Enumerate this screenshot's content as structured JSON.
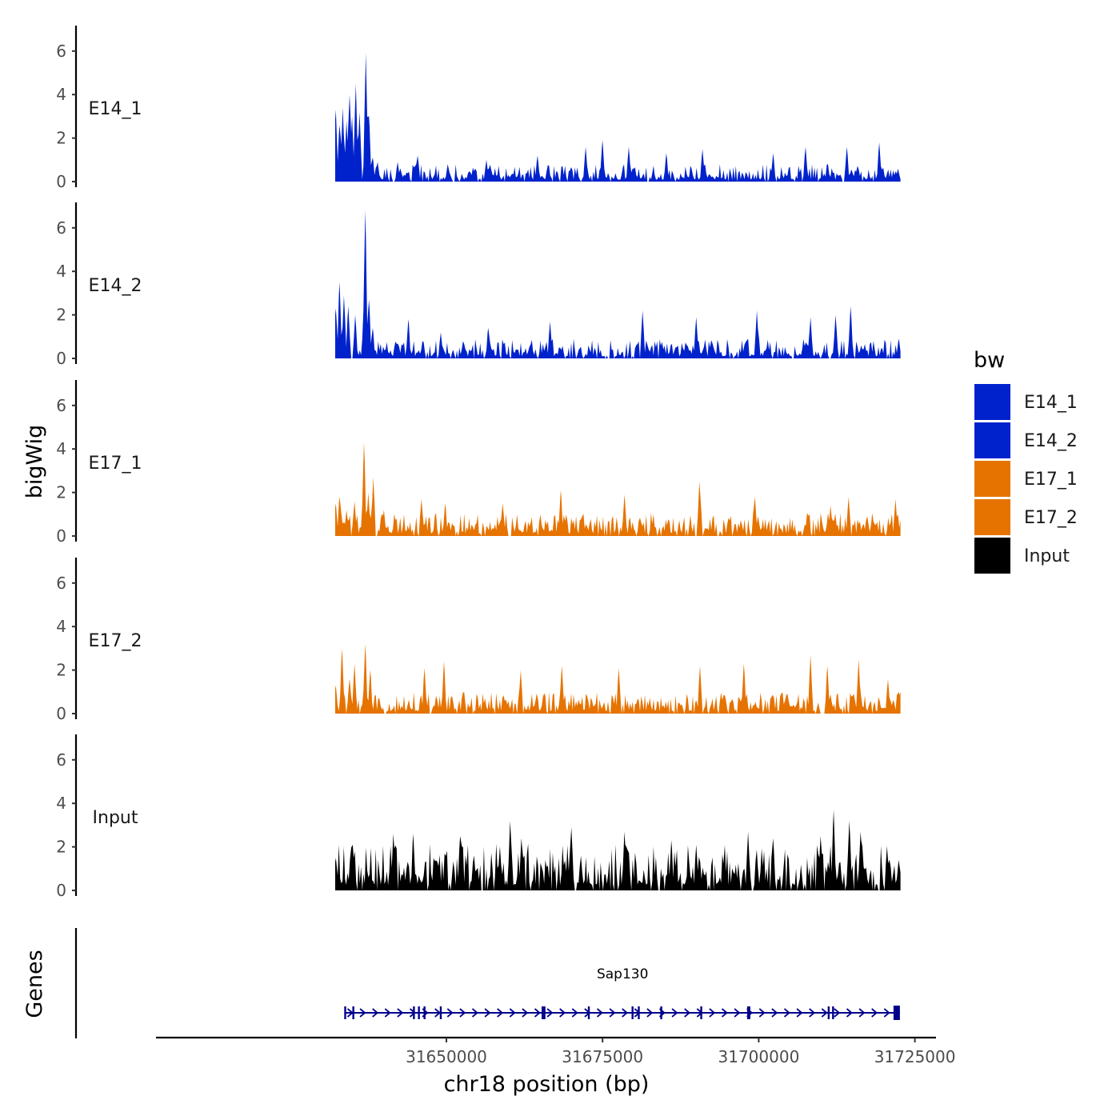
{
  "chart_data": {
    "type": "area",
    "chromosome": "chr18",
    "x_range": [
      31632200,
      31722700
    ],
    "xlabel": "chr18 position (bp)",
    "x_ticks": [
      31650000,
      31675000,
      31700000,
      31725000
    ],
    "x_tick_labels": [
      "31650000",
      "31675000",
      "31700000",
      "31725000"
    ],
    "ylabel": "bigWig",
    "ylim": [
      0,
      7.2
    ],
    "y_ticks": [
      0,
      2,
      4,
      6
    ],
    "y_tick_labels": [
      "0",
      "2",
      "4",
      "6"
    ],
    "legend": {
      "title": "bw",
      "position": "right",
      "entries": [
        {
          "label": "E14_1",
          "color": "#0022CC"
        },
        {
          "label": "E14_2",
          "color": "#0022CC"
        },
        {
          "label": "E17_1",
          "color": "#E67300"
        },
        {
          "label": "E17_2",
          "color": "#E67300"
        },
        {
          "label": "Input",
          "color": "#000000"
        }
      ]
    },
    "series": [
      {
        "name": "E14_1",
        "color": "#0022CC",
        "peaks": [
          {
            "x": 31632300,
            "y": 3.3
          },
          {
            "x": 31632900,
            "y": 2.6
          },
          {
            "x": 31633400,
            "y": 3.4
          },
          {
            "x": 31634000,
            "y": 2.8
          },
          {
            "x": 31634500,
            "y": 4.0
          },
          {
            "x": 31634900,
            "y": 3.0
          },
          {
            "x": 31635500,
            "y": 4.5
          },
          {
            "x": 31636100,
            "y": 3.2
          },
          {
            "x": 31637100,
            "y": 5.9
          },
          {
            "x": 31637600,
            "y": 3.0
          },
          {
            "x": 31638200,
            "y": 1.1
          },
          {
            "x": 31639000,
            "y": 0.9
          },
          {
            "x": 31642200,
            "y": 0.9
          },
          {
            "x": 31645400,
            "y": 1.2
          },
          {
            "x": 31650200,
            "y": 0.8
          },
          {
            "x": 31656400,
            "y": 1.0
          },
          {
            "x": 31664600,
            "y": 1.2
          },
          {
            "x": 31672300,
            "y": 1.6
          },
          {
            "x": 31675000,
            "y": 1.9
          },
          {
            "x": 31679200,
            "y": 1.6
          },
          {
            "x": 31685200,
            "y": 1.3
          },
          {
            "x": 31691000,
            "y": 1.5
          },
          {
            "x": 31702300,
            "y": 1.3
          },
          {
            "x": 31707500,
            "y": 1.6
          },
          {
            "x": 31714100,
            "y": 1.6
          },
          {
            "x": 31719300,
            "y": 1.8
          },
          {
            "x": 31722300,
            "y": 0.6
          }
        ],
        "baseline": 0.45
      },
      {
        "name": "E14_2",
        "color": "#0022CC",
        "peaks": [
          {
            "x": 31632300,
            "y": 2.3
          },
          {
            "x": 31632900,
            "y": 3.5
          },
          {
            "x": 31633600,
            "y": 2.9
          },
          {
            "x": 31634300,
            "y": 2.4
          },
          {
            "x": 31635400,
            "y": 2.0
          },
          {
            "x": 31637000,
            "y": 6.8
          },
          {
            "x": 31637600,
            "y": 2.7
          },
          {
            "x": 31638200,
            "y": 1.4
          },
          {
            "x": 31643900,
            "y": 1.8
          },
          {
            "x": 31649100,
            "y": 1.2
          },
          {
            "x": 31656700,
            "y": 1.4
          },
          {
            "x": 31666600,
            "y": 1.7
          },
          {
            "x": 31681400,
            "y": 2.2
          },
          {
            "x": 31690000,
            "y": 1.9
          },
          {
            "x": 31699700,
            "y": 2.2
          },
          {
            "x": 31708300,
            "y": 1.9
          },
          {
            "x": 31712300,
            "y": 2.0
          },
          {
            "x": 31714700,
            "y": 2.4
          },
          {
            "x": 31722400,
            "y": 0.9
          }
        ],
        "baseline": 0.5
      },
      {
        "name": "E17_1",
        "color": "#E67300",
        "peaks": [
          {
            "x": 31632300,
            "y": 1.5
          },
          {
            "x": 31632900,
            "y": 1.8
          },
          {
            "x": 31634000,
            "y": 1.2
          },
          {
            "x": 31635300,
            "y": 1.6
          },
          {
            "x": 31636800,
            "y": 4.3
          },
          {
            "x": 31637500,
            "y": 2.0
          },
          {
            "x": 31638300,
            "y": 2.7
          },
          {
            "x": 31640000,
            "y": 1.2
          },
          {
            "x": 31646000,
            "y": 1.7
          },
          {
            "x": 31649800,
            "y": 1.5
          },
          {
            "x": 31659000,
            "y": 1.5
          },
          {
            "x": 31668300,
            "y": 2.1
          },
          {
            "x": 31678500,
            "y": 1.9
          },
          {
            "x": 31690500,
            "y": 2.5
          },
          {
            "x": 31699400,
            "y": 1.8
          },
          {
            "x": 31711500,
            "y": 1.4
          },
          {
            "x": 31714400,
            "y": 1.8
          },
          {
            "x": 31721900,
            "y": 1.7
          }
        ],
        "baseline": 0.6
      },
      {
        "name": "E17_2",
        "color": "#E67300",
        "peaks": [
          {
            "x": 31632300,
            "y": 1.3
          },
          {
            "x": 31633300,
            "y": 3.0
          },
          {
            "x": 31634500,
            "y": 1.6
          },
          {
            "x": 31635300,
            "y": 2.3
          },
          {
            "x": 31637000,
            "y": 3.2
          },
          {
            "x": 31637800,
            "y": 2.0
          },
          {
            "x": 31646500,
            "y": 2.1
          },
          {
            "x": 31649600,
            "y": 2.4
          },
          {
            "x": 31661900,
            "y": 2.0
          },
          {
            "x": 31668500,
            "y": 2.2
          },
          {
            "x": 31677600,
            "y": 2.1
          },
          {
            "x": 31690600,
            "y": 2.2
          },
          {
            "x": 31697600,
            "y": 2.3
          },
          {
            "x": 31708300,
            "y": 2.7
          },
          {
            "x": 31711000,
            "y": 2.2
          },
          {
            "x": 31716000,
            "y": 2.5
          },
          {
            "x": 31720700,
            "y": 1.6
          },
          {
            "x": 31722400,
            "y": 1.0
          }
        ],
        "baseline": 0.55
      },
      {
        "name": "Input",
        "color": "#000000",
        "peaks": [
          {
            "x": 31632300,
            "y": 1.5
          },
          {
            "x": 31635000,
            "y": 2.1
          },
          {
            "x": 31641500,
            "y": 2.6
          },
          {
            "x": 31644700,
            "y": 2.6
          },
          {
            "x": 31652200,
            "y": 2.5
          },
          {
            "x": 31660200,
            "y": 3.2
          },
          {
            "x": 31662000,
            "y": 2.4
          },
          {
            "x": 31670000,
            "y": 2.9
          },
          {
            "x": 31678500,
            "y": 2.7
          },
          {
            "x": 31686000,
            "y": 2.3
          },
          {
            "x": 31690000,
            "y": 2.1
          },
          {
            "x": 31698300,
            "y": 2.7
          },
          {
            "x": 31702300,
            "y": 2.4
          },
          {
            "x": 31709900,
            "y": 2.5
          },
          {
            "x": 31712000,
            "y": 3.7
          },
          {
            "x": 31714500,
            "y": 3.2
          },
          {
            "x": 31716300,
            "y": 2.7
          },
          {
            "x": 31722400,
            "y": 1.4
          }
        ],
        "baseline": 1.2
      }
    ],
    "genes_track": {
      "ylabel": "Genes",
      "genes": [
        {
          "name": "Sap130",
          "start": 31633800,
          "end": 31722600,
          "strand": "+",
          "color": "#00008B",
          "exons": [
            31633800,
            31635100,
            31644800,
            31645600,
            31646500,
            31649100,
            31665400,
            31665700,
            31672800,
            31679800,
            31680800,
            31684400,
            31690800,
            31698300,
            31698500,
            31711200,
            31711900,
            31722300
          ]
        }
      ]
    }
  }
}
